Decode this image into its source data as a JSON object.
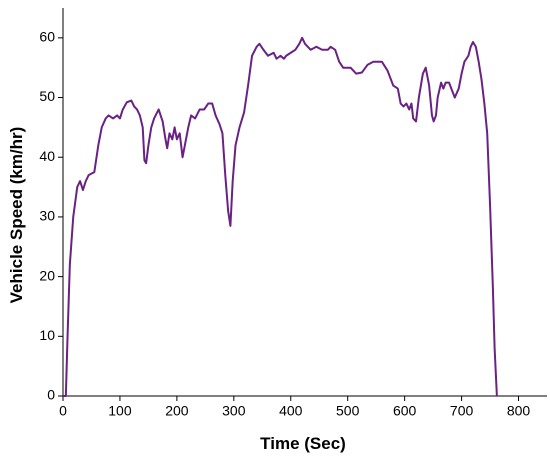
{
  "chart_data": {
    "type": "line",
    "x_label": "Time (Sec)",
    "y_label": "Vehicle Speed (km/hr)",
    "xlim": [
      0,
      850
    ],
    "xticks": [
      0,
      100,
      200,
      300,
      400,
      500,
      600,
      700,
      800
    ],
    "ylim": [
      0,
      65
    ],
    "yticks": [
      0,
      10,
      20,
      30,
      40,
      50,
      60
    ],
    "x": [
      0,
      5,
      8,
      12,
      18,
      25,
      30,
      35,
      40,
      45,
      55,
      62,
      68,
      75,
      80,
      88,
      95,
      100,
      105,
      112,
      120,
      125,
      130,
      135,
      140,
      143,
      146,
      150,
      155,
      160,
      168,
      175,
      180,
      183,
      187,
      192,
      196,
      200,
      205,
      210,
      214,
      220,
      225,
      232,
      240,
      248,
      255,
      262,
      268,
      275,
      280,
      285,
      290,
      294,
      298,
      303,
      310,
      318,
      325,
      332,
      340,
      345,
      352,
      360,
      370,
      375,
      382,
      388,
      392,
      400,
      408,
      415,
      420,
      425,
      435,
      445,
      455,
      465,
      470,
      478,
      485,
      492,
      505,
      515,
      525,
      535,
      545,
      560,
      570,
      580,
      588,
      593,
      598,
      603,
      608,
      612,
      615,
      620,
      625,
      632,
      637,
      643,
      648,
      651,
      655,
      658,
      664,
      668,
      672,
      678,
      682,
      688,
      695,
      700,
      705,
      712,
      716,
      720,
      725,
      730,
      735,
      740,
      745,
      750,
      755,
      758,
      762
    ],
    "series": [
      {
        "color": "#6a2184",
        "values": [
          0,
          0,
          10,
          22,
          30,
          35,
          36,
          34.5,
          36,
          37,
          37.5,
          42,
          45,
          46.5,
          47,
          46.5,
          47,
          46.5,
          48,
          49.2,
          49.5,
          48.5,
          48,
          47,
          45,
          39.5,
          39,
          42,
          45,
          46.5,
          48,
          46,
          43,
          41.5,
          44,
          43,
          45,
          43,
          44,
          40,
          42,
          45,
          47,
          46.5,
          48,
          48,
          49,
          49,
          47,
          45.5,
          44,
          37,
          31,
          28.5,
          36,
          42,
          45,
          47.5,
          52,
          57,
          58.5,
          59,
          58,
          57,
          57.5,
          56.5,
          57,
          56.5,
          57,
          57.5,
          58,
          59,
          60,
          59,
          58,
          58.5,
          58,
          58,
          58.5,
          58,
          56,
          55,
          55,
          54,
          54.2,
          55.5,
          56,
          56,
          54.5,
          52,
          51.5,
          49,
          48.5,
          49,
          48,
          49,
          46.5,
          46,
          50,
          54,
          55,
          52,
          47,
          46,
          47,
          50,
          52.5,
          51.5,
          52.5,
          52.5,
          51.5,
          50,
          51.5,
          54,
          56,
          57,
          58.5,
          59.3,
          58.5,
          56,
          53,
          49,
          44,
          32,
          18,
          8,
          0
        ]
      }
    ]
  }
}
